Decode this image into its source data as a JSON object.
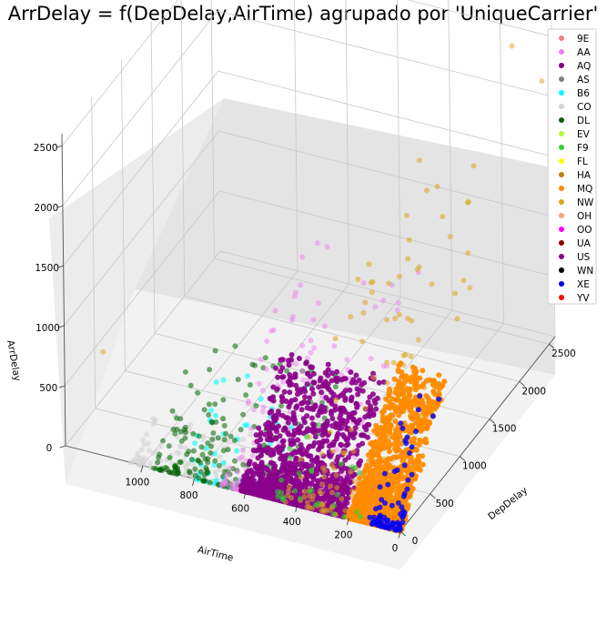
{
  "chart_data": {
    "type": "scatter",
    "projection": "3d",
    "title": "ArrDelay = f(DepDelay,AirTime) agrupado por 'UniqueCarrier'",
    "xlabel": "DepDelay",
    "ylabel": "AirTime",
    "zlabel": "ArrDelay",
    "xlim": [
      0,
      2600
    ],
    "ylim": [
      0,
      1300
    ],
    "zlim": [
      0,
      2600
    ],
    "x_ticks": [
      0,
      500,
      1000,
      1500,
      2000,
      2500
    ],
    "y_ticks": [
      0,
      200,
      400,
      600,
      800,
      1000
    ],
    "z_ticks": [
      0,
      500,
      1000,
      1500,
      2000,
      2500
    ],
    "grid": true,
    "legend_position": "top-right",
    "series": [
      {
        "name": "9E",
        "color": "#f08080"
      },
      {
        "name": "AA",
        "color": "#ee82ee"
      },
      {
        "name": "AQ",
        "color": "#800080"
      },
      {
        "name": "AS",
        "color": "#808080"
      },
      {
        "name": "B6",
        "color": "#00ffff"
      },
      {
        "name": "CO",
        "color": "#d3d3d3"
      },
      {
        "name": "DL",
        "color": "#006400"
      },
      {
        "name": "EV",
        "color": "#adff2f"
      },
      {
        "name": "F9",
        "color": "#32cd32"
      },
      {
        "name": "FL",
        "color": "#ffff00"
      },
      {
        "name": "HA",
        "color": "#b8860b"
      },
      {
        "name": "MQ",
        "color": "#ff8c00"
      },
      {
        "name": "NW",
        "color": "#daa520"
      },
      {
        "name": "OH",
        "color": "#ffa07a"
      },
      {
        "name": "OO",
        "color": "#ff00ff"
      },
      {
        "name": "UA",
        "color": "#8b0000"
      },
      {
        "name": "US",
        "color": "#8b008b"
      },
      {
        "name": "WN",
        "color": "#000000"
      },
      {
        "name": "XE",
        "color": "#0000ff"
      },
      {
        "name": "YV",
        "color": "#ff0000"
      }
    ]
  }
}
